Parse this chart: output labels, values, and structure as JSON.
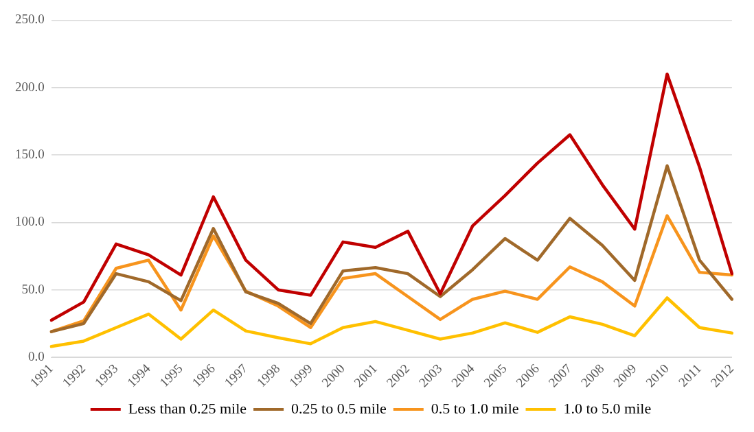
{
  "chart_data": {
    "type": "line",
    "categories": [
      "1991",
      "1992",
      "1993",
      "1994",
      "1995",
      "1996",
      "1997",
      "1998",
      "1999",
      "2000",
      "2001",
      "2002",
      "2003",
      "2004",
      "2005",
      "2006",
      "2007",
      "2008",
      "2009",
      "2010",
      "2011",
      "2012"
    ],
    "series": [
      {
        "name": "Less than 0.25 mile",
        "color": "#c00000",
        "values": [
          27.5,
          41,
          84,
          76,
          61,
          119,
          72,
          50,
          46,
          85.5,
          81.5,
          93.5,
          47,
          97.5,
          120,
          144,
          165,
          128,
          95,
          210,
          141,
          62
        ]
      },
      {
        "name": "0.25 to 0.5 mile",
        "color": "#a0692a",
        "values": [
          19,
          25,
          62,
          56,
          42,
          95.5,
          48.5,
          40,
          25,
          64,
          66.5,
          62,
          45,
          65,
          88,
          72,
          103,
          83,
          57,
          142,
          72,
          43
        ]
      },
      {
        "name": "0.5 to 1.0 mile",
        "color": "#f7941d",
        "values": [
          19,
          27,
          66,
          72,
          35,
          90,
          49,
          38,
          22,
          58.5,
          62,
          45,
          28,
          43,
          49,
          43,
          67,
          56,
          38,
          105,
          63,
          61
        ]
      },
      {
        "name": "1.0 to 5.0 mile",
        "color": "#ffc000",
        "values": [
          8,
          12,
          22,
          32,
          13.5,
          35,
          19.5,
          14.5,
          10,
          22,
          26.5,
          20,
          13.5,
          18,
          25.5,
          18.5,
          30,
          24.5,
          16,
          44,
          22,
          18
        ]
      }
    ],
    "ylim": [
      0,
      250
    ],
    "yticks": [
      {
        "value": 0,
        "label": "0.0"
      },
      {
        "value": 50,
        "label": "50.0"
      },
      {
        "value": 100,
        "label": "100.0"
      },
      {
        "value": 150,
        "label": "150.0"
      },
      {
        "value": 200,
        "label": "200.0"
      },
      {
        "value": 250,
        "label": "250.0"
      }
    ],
    "grid": "y",
    "legend": "bottom",
    "marker": "none",
    "line_style": "solid"
  }
}
